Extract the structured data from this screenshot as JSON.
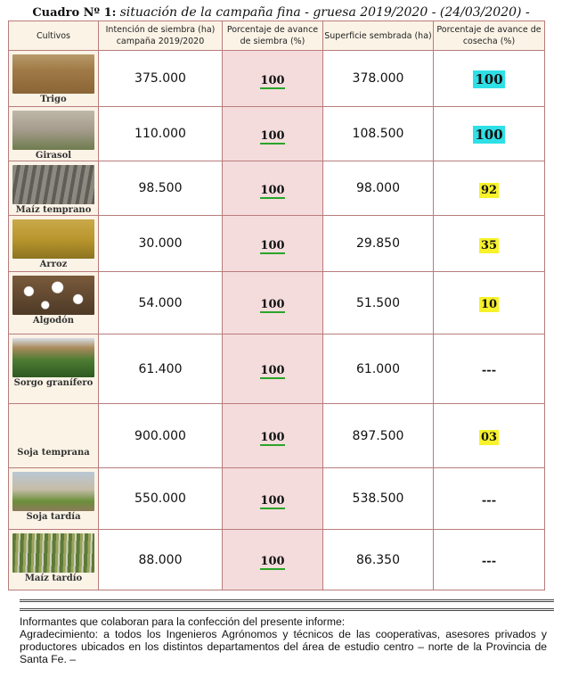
{
  "title": {
    "prefix": "Cuadro Nº 1:",
    "text": "situación de la campaña fina - gruesa 2019/2020 - (24/03/2020) -"
  },
  "columns": {
    "crop": "Cultivos",
    "intention": "Intención de siembra (ha) campaña 2019/2020",
    "sowing_pct": "Porcentaje de avance de siembra (%)",
    "sown_area": "Superficie sembrada (ha)",
    "harvest_pct": "Porcentaje de avance de cosecha (%)"
  },
  "rows": [
    {
      "name": "Trigo",
      "intention": "375.000",
      "sowing_pct": "100",
      "sown_area": "378.000",
      "harvest_pct": "100",
      "highlight": "cyan",
      "photo_icon": "wheat-field-photo"
    },
    {
      "name": "Girasol",
      "intention": "110.000",
      "sowing_pct": "100",
      "sown_area": "108.500",
      "harvest_pct": "100",
      "highlight": "cyan",
      "photo_icon": "sunflower-field-photo"
    },
    {
      "name": "Maíz temprano",
      "intention": "98.500",
      "sowing_pct": "100",
      "sown_area": "98.000",
      "harvest_pct": "92",
      "highlight": "yellow",
      "photo_icon": "corn-stubble-photo"
    },
    {
      "name": "Arroz",
      "intention": "30.000",
      "sowing_pct": "100",
      "sown_area": "29.850",
      "harvest_pct": "35",
      "highlight": "yellow",
      "photo_icon": "rice-field-photo"
    },
    {
      "name": "Algodón",
      "intention": "54.000",
      "sowing_pct": "100",
      "sown_area": "51.500",
      "harvest_pct": "10",
      "highlight": "yellow",
      "photo_icon": "cotton-bolls-photo"
    },
    {
      "name": "Sorgo granífero",
      "intention": "61.400",
      "sowing_pct": "100",
      "sown_area": "61.000",
      "harvest_pct": "---",
      "highlight": "none",
      "photo_icon": "sorghum-field-photo"
    },
    {
      "name": "Soja temprana",
      "intention": "900.000",
      "sowing_pct": "100",
      "sown_area": "897.500",
      "harvest_pct": "03",
      "highlight": "yellow",
      "photo_icon": "soybean-rows-photo"
    },
    {
      "name": "Soja tardía",
      "intention": "550.000",
      "sowing_pct": "100",
      "sown_area": "538.500",
      "harvest_pct": "---",
      "highlight": "none",
      "photo_icon": "soybean-seedling-photo"
    },
    {
      "name": "Maíz tardío",
      "intention": "88.000",
      "sowing_pct": "100",
      "sown_area": "86.350",
      "harvest_pct": "---",
      "highlight": "none",
      "photo_icon": "late-corn-photo"
    }
  ],
  "footer": {
    "informants": "Informantes que colaboran para la confección del presente informe:",
    "thanks": "Agradecimiento: a todos los Ingenieros Agrónomos y técnicos de las cooperativas, asesores privados y productores ubicados en los distintos departamentos del área de estudio centro – norte de la Provincia de Santa Fe. –"
  },
  "colors": {
    "header_bg": "#fbf3e6",
    "border": "#b87c7c",
    "sowing_col_bg": "#f5dcdc",
    "highlight_cyan": "#2ee0e6",
    "highlight_yellow": "#f7f22a",
    "underline_green": "#2aa52a"
  }
}
